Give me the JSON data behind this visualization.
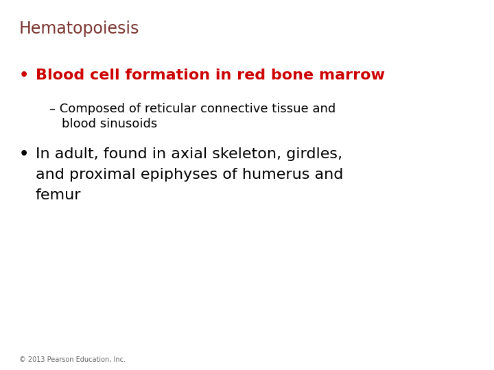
{
  "title": "Hematopoiesis",
  "title_color": "#7B3530",
  "title_fontsize": 17,
  "background_color": "#ffffff",
  "bullet1_text": "Blood cell formation in red bone marrow",
  "bullet1_color": "#cc0000",
  "bullet1_fontsize": 16,
  "sub1_line1": "– Composed of reticular connective tissue and",
  "sub1_line2": "blood sinusoids",
  "sub1_color": "#000000",
  "sub1_fontsize": 13,
  "bullet2_line1": "In adult, found in axial skeleton, girdles,",
  "bullet2_line2": "and proximal epiphyses of humerus and",
  "bullet2_line3": "femur",
  "bullet2_color": "#000000",
  "bullet2_fontsize": 16,
  "copyright_text": "© 2013 Pearson Education, Inc.",
  "copyright_color": "#666666",
  "copyright_fontsize": 7
}
